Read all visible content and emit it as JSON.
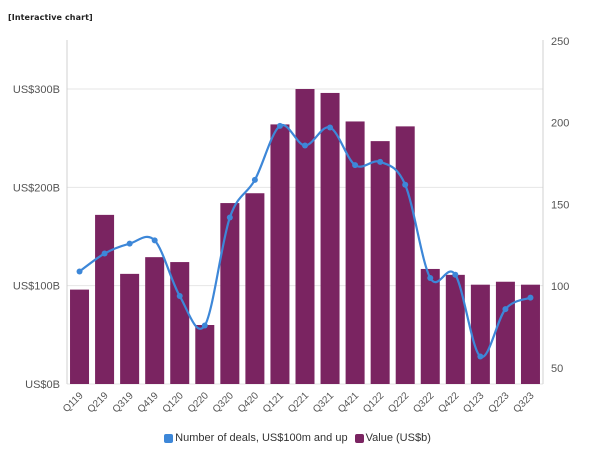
{
  "header": {
    "note": "[Interactive chart]"
  },
  "legend": {
    "items": [
      {
        "label": "Number of deals, US$100m and up",
        "color": "#3d87d8"
      },
      {
        "label": "Value (US$b)",
        "color": "#7a2461"
      }
    ]
  },
  "chart_data": {
    "type": "bar+line",
    "categories": [
      "Q119",
      "Q219",
      "Q319",
      "Q419",
      "Q120",
      "Q220",
      "Q320",
      "Q420",
      "Q121",
      "Q221",
      "Q321",
      "Q421",
      "Q122",
      "Q222",
      "Q322",
      "Q422",
      "Q123",
      "Q223",
      "Q323"
    ],
    "series": [
      {
        "name": "Value (US$b)",
        "type": "bar",
        "axis": "left",
        "color": "#7a2461",
        "values": [
          96,
          172,
          112,
          129,
          124,
          60,
          184,
          194,
          264,
          300,
          296,
          267,
          247,
          262,
          117,
          111,
          101,
          104,
          101
        ]
      },
      {
        "name": "Number of deals, US$100m and up",
        "type": "line",
        "axis": "right",
        "color": "#3d87d8",
        "values": [
          109,
          120,
          126,
          128,
          94,
          76,
          142,
          165,
          198,
          186,
          197,
          174,
          176,
          162,
          105,
          107,
          57,
          86,
          93
        ]
      }
    ],
    "y_left": {
      "ticks": [
        "US$0B",
        "US$100B",
        "US$200B",
        "US$300B"
      ],
      "tick_values": [
        0,
        100,
        200,
        300
      ],
      "range": [
        0,
        350
      ]
    },
    "y_right": {
      "ticks": [
        "50",
        "100",
        "150",
        "200",
        "250"
      ],
      "tick_values": [
        50,
        100,
        150,
        200,
        250
      ],
      "range": [
        50,
        250
      ]
    },
    "grid": true
  }
}
